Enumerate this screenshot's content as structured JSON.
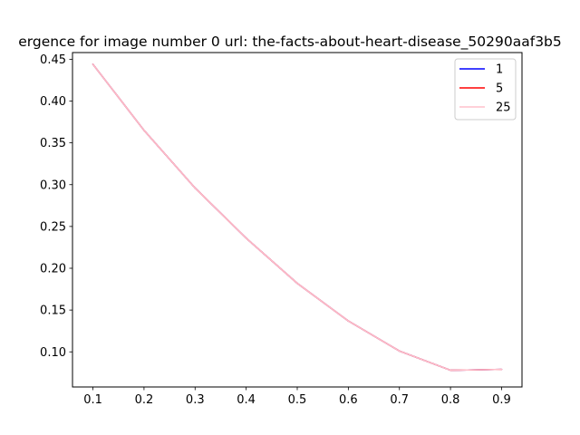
{
  "chart_data": {
    "type": "line",
    "title": "ergence for image number 0 url: the-facts-about-heart-disease_50290aaf3b5",
    "xlabel": "",
    "ylabel": "",
    "x": [
      0.1,
      0.2,
      0.3,
      0.4,
      0.5,
      0.6,
      0.7,
      0.8,
      0.9
    ],
    "xlim": [
      0.06,
      0.94
    ],
    "ylim": [
      0.058,
      0.458
    ],
    "xticks": [
      "0.1",
      "0.2",
      "0.3",
      "0.4",
      "0.5",
      "0.6",
      "0.7",
      "0.8",
      "0.9"
    ],
    "yticks": [
      "0.10",
      "0.15",
      "0.20",
      "0.25",
      "0.30",
      "0.35",
      "0.40",
      "0.45"
    ],
    "grid": false,
    "legend_position": "top-right",
    "series": [
      {
        "name": "1",
        "color": "#0000ff",
        "values": [
          0.444,
          0.365,
          0.296,
          0.236,
          0.182,
          0.137,
          0.101,
          0.078,
          0.079
        ]
      },
      {
        "name": "5",
        "color": "#ff0000",
        "values": [
          0.444,
          0.365,
          0.296,
          0.236,
          0.182,
          0.137,
          0.101,
          0.078,
          0.079
        ]
      },
      {
        "name": "25",
        "color": "#ffc0cb",
        "values": [
          0.444,
          0.365,
          0.296,
          0.236,
          0.182,
          0.137,
          0.101,
          0.078,
          0.079
        ]
      }
    ]
  }
}
